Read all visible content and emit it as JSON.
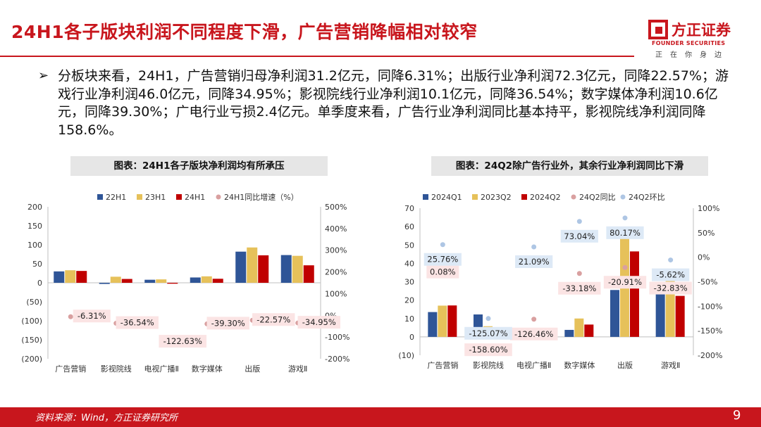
{
  "header": {
    "title": "24H1各子版块利润不同程度下滑，广告营销降幅相对较窄",
    "logo_name": "方正证券",
    "logo_en": "FOUNDER SECURITIES",
    "logo_slogan": "正在你身边"
  },
  "bullet_text": "分板块来看，24H1，广告营销归母净利润31.2亿元，同降6.31%；出版行业净利润72.3亿元，同降22.57%；游戏行业净利润46.0亿元，同降34.95%；影视院线行业净利润10.1亿元，同降36.54%；数字媒体净利润10.6亿元，同降39.30%；广电行业亏损2.4亿元。单季度来看，广告行业净利润同比基本持平，影视院线净利润同降158.6%。",
  "footer": {
    "source": "资料来源：Wind，方正证券研究所",
    "page": "9"
  },
  "colors": {
    "brand": "#c8161d",
    "blue": "#2f5597",
    "gold": "#e6c15a",
    "red": "#c00000",
    "dot": "#d9a0a0",
    "dot_blue": "#aec6e4"
  },
  "chart_data": [
    {
      "type": "bar",
      "title": "图表：24H1各子版块净利润均有所承压",
      "categories": [
        "广告营销",
        "影视院线",
        "电视广播Ⅱ",
        "数字媒体",
        "出版",
        "游戏Ⅱ"
      ],
      "series": [
        {
          "name": "22H1",
          "color": "#2f5597",
          "values": [
            30,
            -3,
            8,
            14,
            82,
            73
          ]
        },
        {
          "name": "23H1",
          "color": "#e6c15a",
          "values": [
            33,
            16,
            9,
            17,
            93,
            71
          ]
        },
        {
          "name": "24H1",
          "color": "#c00000",
          "values": [
            31.2,
            10.1,
            -2.4,
            10.6,
            72.3,
            46.0
          ]
        }
      ],
      "line_series": {
        "name": "24H1同比增速（%）",
        "values": [
          -6.31,
          -36.54,
          -122.63,
          -39.3,
          -22.57,
          -34.95
        ],
        "labels": [
          "-6.31%",
          "-36.54%",
          "-122.63%",
          "-39.30%",
          "-22.57%",
          "-34.95%"
        ]
      },
      "ylim": [
        -200,
        200
      ],
      "y_ticks": [
        "200",
        "150",
        "100",
        "50",
        "0",
        "(50)",
        "(100)",
        "(150)",
        "(200)"
      ],
      "y2lim": [
        -200,
        500
      ],
      "y2_ticks": [
        "500%",
        "400%",
        "300%",
        "200%",
        "100%",
        "0%",
        "-100%",
        "-200%"
      ],
      "legend": "top"
    },
    {
      "type": "bar",
      "title": "图表：24Q2除广告行业外，其余行业净利润同比下滑",
      "categories": [
        "广告营销",
        "影视院线",
        "电视广播Ⅱ",
        "数字媒体",
        "出版",
        "游戏Ⅱ"
      ],
      "series": [
        {
          "name": "2024Q1",
          "color": "#2f5597",
          "values": [
            13.5,
            12.2,
            0,
            3.8,
            25.5,
            23.5
          ]
        },
        {
          "name": "2023Q2",
          "color": "#e6c15a",
          "values": [
            17.0,
            5.8,
            0,
            10.0,
            58.5,
            33.0
          ]
        },
        {
          "name": "2024Q2",
          "color": "#c00000",
          "values": [
            17.1,
            -1.3,
            0,
            6.7,
            46.5,
            22.3
          ]
        }
      ],
      "dot_series": [
        {
          "name": "24Q2同比",
          "color": "#d9a0a0",
          "values": [
            0.08,
            -158.6,
            -126.46,
            -33.18,
            -20.91,
            -32.83
          ],
          "labels": [
            "0.08%",
            "-158.60%",
            "-126.46%",
            "-33.18%",
            "-20.91%",
            "-32.83%"
          ]
        },
        {
          "name": "24Q2环比",
          "color": "#aec6e4",
          "values": [
            25.76,
            -125.07,
            21.09,
            73.04,
            80.17,
            -5.62
          ],
          "labels": [
            "25.76%",
            "-125.07%",
            "21.09%",
            "73.04%",
            "80.17%",
            "-5.62%"
          ]
        }
      ],
      "ylim": [
        -10,
        70
      ],
      "y_ticks": [
        "70",
        "60",
        "50",
        "40",
        "30",
        "20",
        "10",
        "0",
        "(10)"
      ],
      "y2lim": [
        -200,
        100
      ],
      "y2_ticks": [
        "100%",
        "50%",
        "0%",
        "-50%",
        "-100%",
        "-150%",
        "-200%"
      ],
      "legend": "top"
    }
  ]
}
